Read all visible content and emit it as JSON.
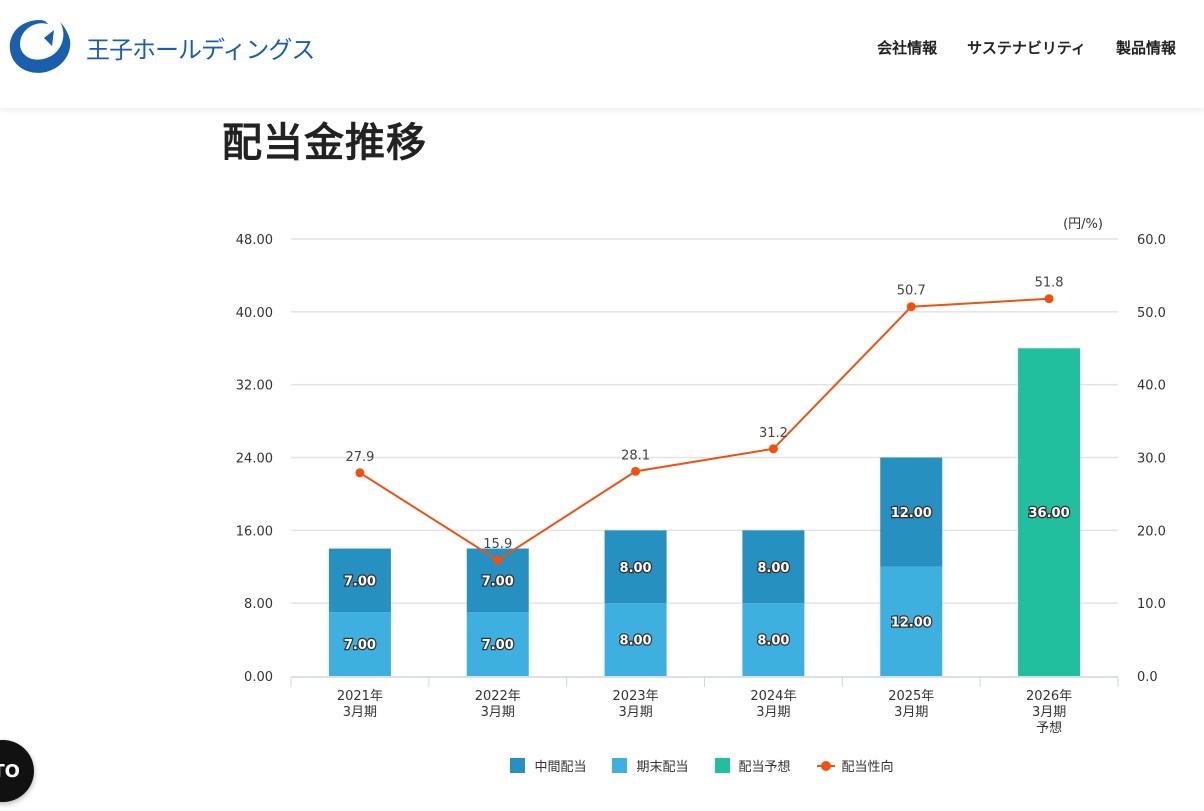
{
  "header": {
    "logo_text": "王子ホールディングス",
    "brand_color": "#1a5fae",
    "nav": [
      {
        "label": "会社情報"
      },
      {
        "label": "サステナビリティ"
      },
      {
        "label": "製品情報"
      }
    ]
  },
  "page_title": "配当金推移",
  "floating_button": {
    "label": "TO"
  },
  "chart_data": {
    "type": "bar",
    "title": "配当金推移",
    "unit_label": "(円/%)",
    "categories": [
      [
        "2021年",
        "3月期"
      ],
      [
        "2022年",
        "3月期"
      ],
      [
        "2023年",
        "3月期"
      ],
      [
        "2024年",
        "3月期"
      ],
      [
        "2025年",
        "3月期"
      ],
      [
        "2026年",
        "3月期",
        "予想"
      ]
    ],
    "y_left": {
      "min": 0,
      "max": 48,
      "ticks": [
        "0.00",
        "8.00",
        "16.00",
        "24.00",
        "32.00",
        "40.00",
        "48.00"
      ]
    },
    "y_right": {
      "min": 0,
      "max": 60,
      "ticks": [
        "0.0",
        "10.0",
        "20.0",
        "30.0",
        "40.0",
        "50.0",
        "60.0"
      ]
    },
    "grid": true,
    "legend_position": "bottom",
    "series": [
      {
        "name": "期末配当",
        "kind": "bar",
        "axis": "left",
        "color": "#3eb0e0",
        "values": [
          7.0,
          7.0,
          8.0,
          8.0,
          12.0,
          null
        ],
        "labels": [
          "7.00",
          "7.00",
          "8.00",
          "8.00",
          "12.00",
          ""
        ]
      },
      {
        "name": "中間配当",
        "kind": "bar",
        "axis": "left",
        "color": "#2690c0",
        "values": [
          7.0,
          7.0,
          8.0,
          8.0,
          12.0,
          null
        ],
        "labels": [
          "7.00",
          "7.00",
          "8.00",
          "8.00",
          "12.00",
          ""
        ]
      },
      {
        "name": "配当予想",
        "kind": "bar",
        "axis": "left",
        "color": "#22bf9e",
        "values": [
          null,
          null,
          null,
          null,
          null,
          36.0
        ],
        "labels": [
          "",
          "",
          "",
          "",
          "",
          "36.00"
        ]
      },
      {
        "name": "配当性向",
        "kind": "line",
        "axis": "right",
        "color": "#f0510f",
        "values": [
          27.9,
          15.9,
          28.1,
          31.2,
          50.7,
          51.8
        ],
        "labels": [
          "27.9",
          "15.9",
          "28.1",
          "31.2",
          "50.7",
          "51.8"
        ]
      }
    ],
    "legend": [
      {
        "name": "中間配当",
        "color": "#2690c0",
        "kind": "bar"
      },
      {
        "name": "期末配当",
        "color": "#3eb0e0",
        "kind": "bar"
      },
      {
        "name": "配当予想",
        "color": "#22bf9e",
        "kind": "bar"
      },
      {
        "name": "配当性向",
        "color": "#f0510f",
        "kind": "line"
      }
    ]
  }
}
